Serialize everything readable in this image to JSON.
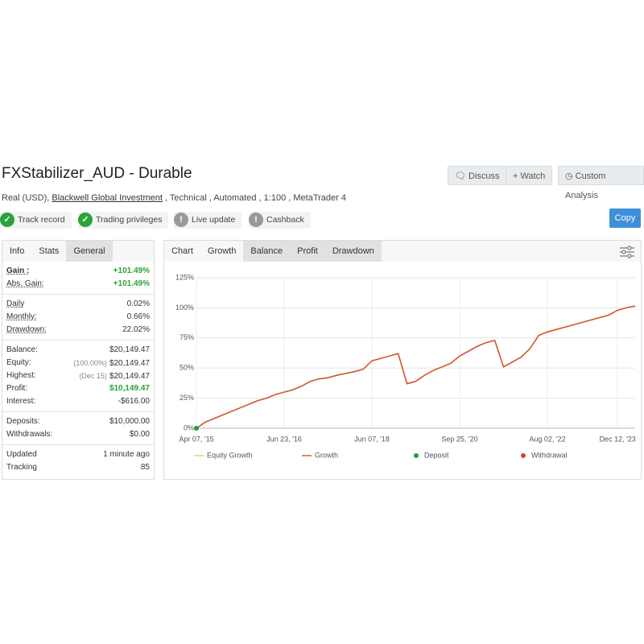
{
  "header": {
    "title": "FXStabilizer_AUD - Durable",
    "buttons": [
      "Discuss",
      "Watch",
      "Custom Analysis"
    ],
    "subtitle_start": "Real (USD),",
    "broker": "Blackwell Global Investment",
    "subtitle_end": ", Technical , Automated , 1:100 , MetaTrader 4",
    "badges": [
      "Track record",
      "Trading privileges",
      "Live update",
      "Cashback"
    ],
    "copy": "Copy"
  },
  "stats": {
    "tabs": [
      "Info",
      "Stats",
      "General"
    ],
    "groups": [
      [
        {
          "label": "Gain :",
          "value": "+101.49%"
        },
        {
          "label": "Abs. Gain:",
          "value": "+101.49%"
        }
      ],
      [
        {
          "label": "Daily",
          "value": "0.02%"
        },
        {
          "label": "Monthly:",
          "value": "0.66%"
        },
        {
          "label": "Drawdown:",
          "value": "22.02%"
        }
      ],
      [
        {
          "label": "Balance:",
          "value": "$20,149.47"
        },
        {
          "label": "Equity:",
          "note": "(100.00%)",
          "value": "$20,149.47"
        },
        {
          "label": "Highest:",
          "note": "(Dec 15)",
          "value": "$20,149.47"
        },
        {
          "label": "Profit:",
          "value": "$10,149.47"
        },
        {
          "label": "Interest:",
          "value": "-$616.00"
        }
      ],
      [
        {
          "label": "Deposits:",
          "value": "$10,000.00"
        },
        {
          "label": "Withdrawals:",
          "value": "$0.00"
        }
      ],
      [
        {
          "label": "Updated",
          "value": "1 minute ago"
        },
        {
          "label": "Tracking",
          "value": "85"
        }
      ]
    ]
  },
  "chart_tabs": [
    "Chart",
    "Growth",
    "Balance",
    "Profit",
    "Drawdown"
  ],
  "chart_data": {
    "type": "line",
    "x": [
      "Apr 07, '15",
      null,
      null,
      null,
      null,
      null,
      null,
      null,
      null,
      null,
      "Jun 23, '16",
      null,
      null,
      null,
      null,
      null,
      null,
      null,
      null,
      null,
      "Jun 07, '18",
      null,
      null,
      null,
      null,
      null,
      null,
      null,
      null,
      null,
      "Sep 25, '20",
      null,
      null,
      null,
      null,
      null,
      null,
      null,
      null,
      null,
      "Aug 02, '22",
      null,
      null,
      null,
      null,
      null,
      null,
      null,
      "Dec 12, '23",
      null,
      null
    ],
    "series": [
      {
        "name": "Equity Growth",
        "color": "#e8d44d",
        "marker": "line",
        "values": [
          0,
          5,
          8,
          11,
          14,
          17,
          20,
          23,
          25,
          28,
          30,
          32,
          35,
          39,
          41,
          42,
          44,
          45.5,
          47,
          49,
          56,
          58,
          60,
          62,
          37,
          39,
          44,
          48,
          51,
          54,
          60,
          64,
          68,
          71,
          73,
          51,
          55,
          59,
          66,
          77,
          80,
          82,
          84,
          86,
          88,
          90,
          92,
          94,
          98,
          100,
          101.49
        ]
      },
      {
        "name": "Growth",
        "color": "#cf5a3c",
        "marker": "line",
        "values": [
          0,
          5,
          8,
          11,
          14,
          17,
          20,
          23,
          25,
          28,
          30,
          32,
          35,
          39,
          41,
          42,
          44,
          45.5,
          47,
          49,
          56,
          58,
          60,
          62,
          37,
          39,
          44,
          48,
          51,
          54,
          60,
          64,
          68,
          71,
          73,
          51,
          55,
          59,
          66,
          77,
          80,
          82,
          84,
          86,
          88,
          90,
          92,
          94,
          98,
          100,
          101.49
        ]
      },
      {
        "name": "Deposit",
        "color": "#1e9e3a",
        "marker": "dot",
        "values": [
          0,
          null,
          null,
          null,
          null,
          null,
          null,
          null,
          null,
          null,
          null,
          null,
          null,
          null,
          null,
          null,
          null,
          null,
          null,
          null,
          null,
          null,
          null,
          null,
          null,
          null,
          null,
          null,
          null,
          null,
          null,
          null,
          null,
          null,
          null,
          null,
          null,
          null,
          null,
          null,
          null,
          null,
          null,
          null,
          null,
          null,
          null,
          null,
          null,
          null,
          null
        ]
      },
      {
        "name": "Withdrawal",
        "color": "#d9412f",
        "marker": "dot",
        "values": [
          null,
          null,
          null,
          null,
          null,
          null,
          null,
          null,
          null,
          null,
          null,
          null,
          null,
          null,
          null,
          null,
          null,
          null,
          null,
          null,
          null,
          null,
          null,
          null,
          null,
          null,
          null,
          null,
          null,
          null,
          null,
          null,
          null,
          null,
          null,
          null,
          null,
          null,
          null,
          null,
          null,
          null,
          null,
          null,
          null,
          null,
          null,
          null,
          null,
          null,
          null
        ]
      }
    ],
    "ylim": [
      0,
      125
    ],
    "yticks": [
      {
        "value": 0,
        "label": "0%"
      },
      {
        "value": 25,
        "label": "25%"
      },
      {
        "value": 50,
        "label": "50%"
      },
      {
        "value": 75,
        "label": "75%"
      },
      {
        "value": 100,
        "label": "100%"
      },
      {
        "value": 125,
        "label": "125%"
      }
    ],
    "grid": true
  }
}
